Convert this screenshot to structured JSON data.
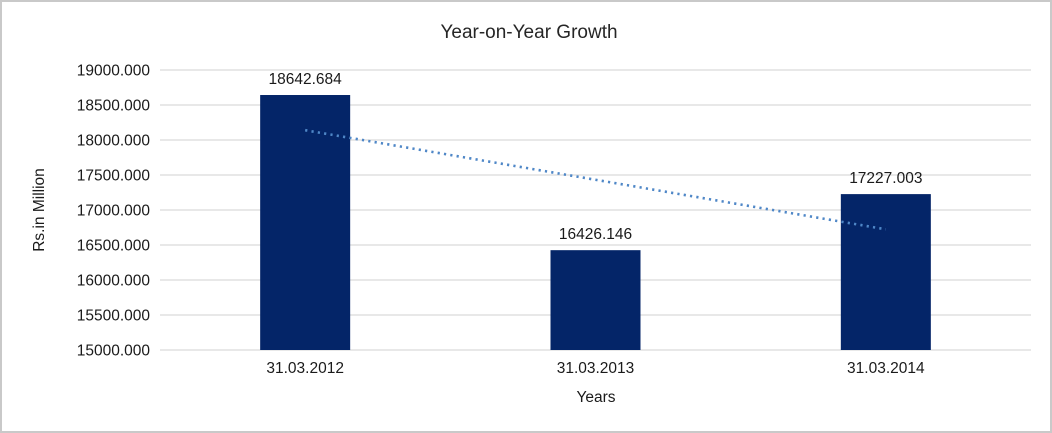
{
  "chart_data": {
    "type": "bar",
    "title": "Year-on-Year Growth",
    "xlabel": "Years",
    "ylabel": "Rs.in Million",
    "categories": [
      "31.03.2012",
      "31.03.2013",
      "31.03.2014"
    ],
    "values": [
      18642.684,
      16426.146,
      17227.003
    ],
    "data_labels": [
      "18642.684",
      "16426.146",
      "17227.003"
    ],
    "ylim": [
      15000,
      19000
    ],
    "ytick_step": 500,
    "ytick_labels": [
      "19000.000",
      "18500.000",
      "18000.000",
      "17500.000",
      "17000.000",
      "16500.000",
      "16000.000",
      "15500.000",
      "15000.000"
    ],
    "grid": true,
    "legend": "none",
    "trendline": {
      "type": "linear",
      "style": "dotted",
      "start_value": 18139.8,
      "end_value": 16724.1
    },
    "colors": {
      "bar": "#042568",
      "trendline": "#4F87C7",
      "gridline": "#D9D9D9",
      "text": "#1A1A1A",
      "border": "#C9C9C9",
      "background": "#FFFFFF"
    }
  }
}
